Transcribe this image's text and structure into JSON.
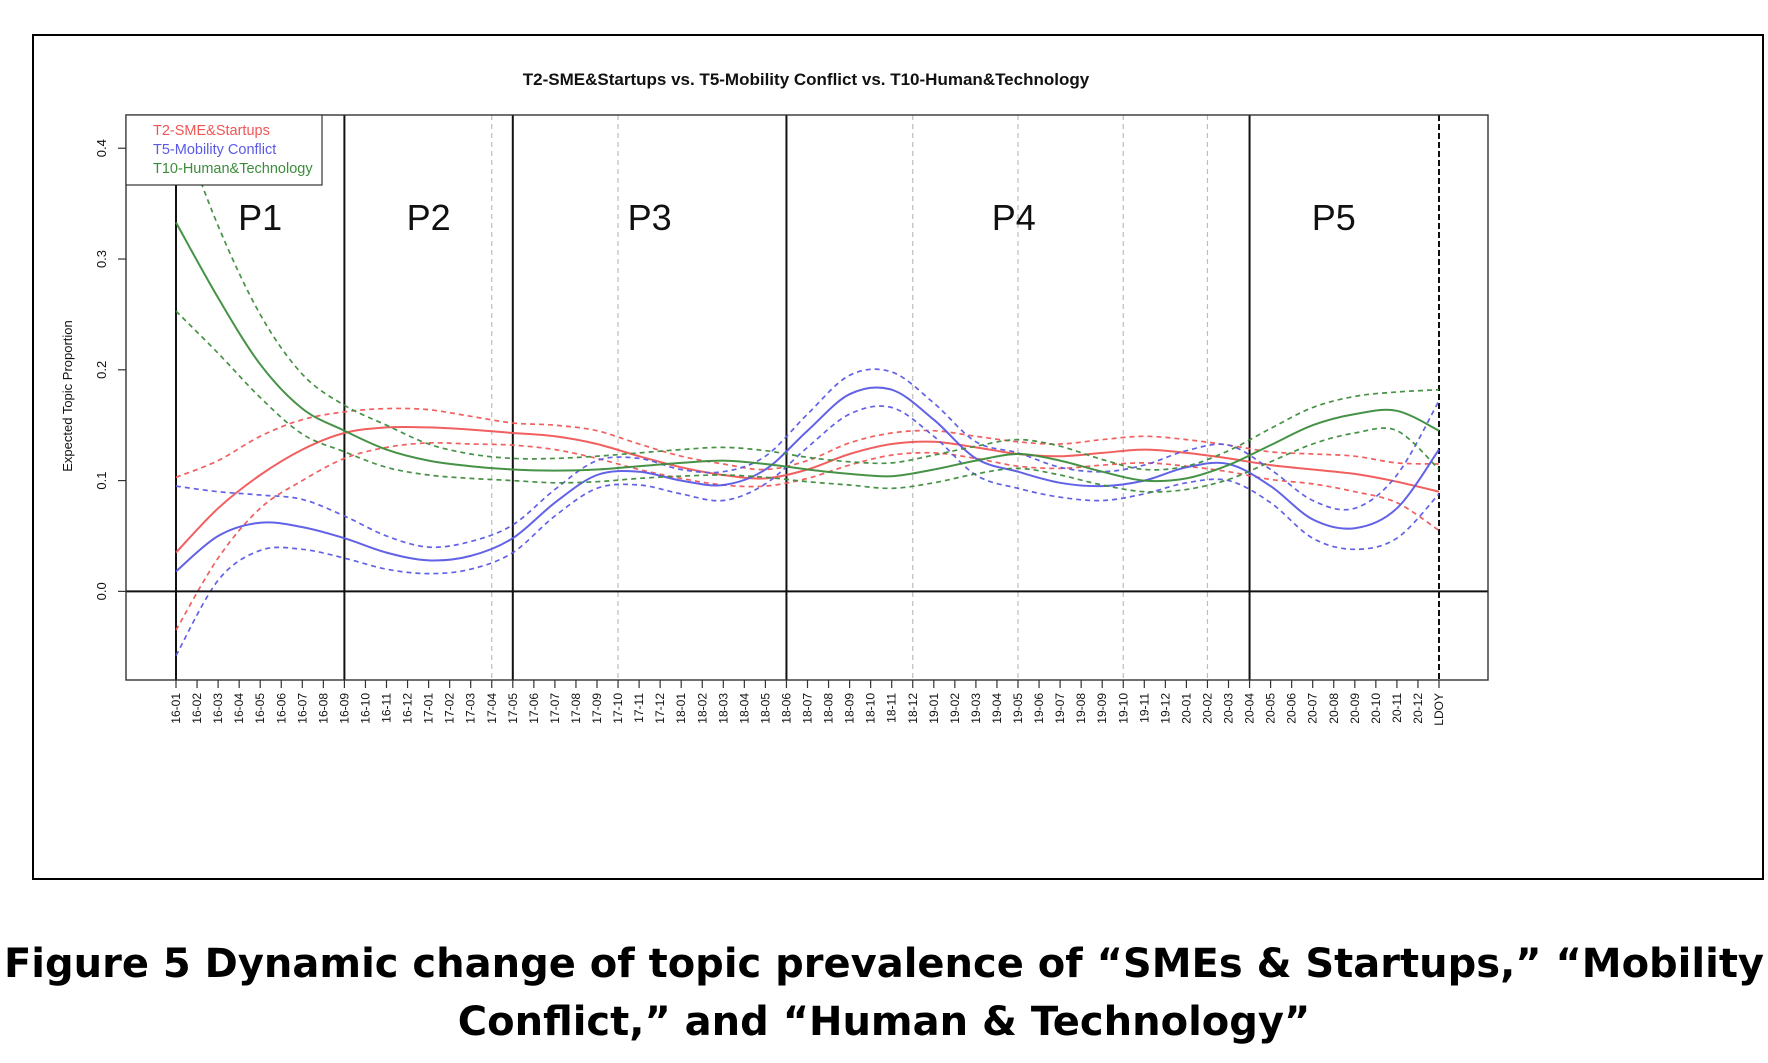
{
  "caption": {
    "line1": "Figure 5 Dynamic change of topic prevalence of “SMEs & Startups,” “Mobility",
    "line2": "Conflict,” and “Human & Technology”"
  },
  "chart_data": {
    "type": "line",
    "title": "T2-SME&Startups vs. T5-Mobility Conflict vs. T10-Human&Technology",
    "xlabel": "",
    "ylabel": "Expected Topic Proportion",
    "ylim": [
      -0.08,
      0.43
    ],
    "yticks": [
      0.0,
      0.1,
      0.2,
      0.3,
      0.4
    ],
    "ytick_labels": [
      "0.0",
      "0.1",
      "0.2",
      "0.3",
      "0.4"
    ],
    "x_labels": [
      "16-01",
      "16-02",
      "16-03",
      "16-04",
      "16-05",
      "16-06",
      "16-07",
      "16-08",
      "16-09",
      "16-10",
      "16-11",
      "16-12",
      "17-01",
      "17-02",
      "17-03",
      "17-04",
      "17-05",
      "17-06",
      "17-07",
      "17-08",
      "17-09",
      "17-10",
      "17-11",
      "17-12",
      "18-01",
      "18-02",
      "18-03",
      "18-04",
      "18-05",
      "18-06",
      "18-07",
      "18-08",
      "18-09",
      "18-10",
      "18-11",
      "18-12",
      "19-01",
      "19-02",
      "19-03",
      "19-04",
      "19-05",
      "19-06",
      "19-07",
      "19-08",
      "19-09",
      "19-10",
      "19-11",
      "19-12",
      "20-01",
      "20-02",
      "20-03",
      "20-04",
      "20-05",
      "20-06",
      "20-07",
      "20-08",
      "20-09",
      "20-10",
      "20-11",
      "20-12",
      "LDOY"
    ],
    "grid": "dashed vertical lines at events",
    "legend_position": "top-left",
    "period_boundaries": [
      0,
      8,
      16,
      29,
      51,
      60
    ],
    "event_lines": [
      15,
      21,
      35,
      40,
      45,
      49
    ],
    "periods": [
      {
        "label": "P1",
        "center": 4
      },
      {
        "label": "P2",
        "center": 12
      },
      {
        "label": "P3",
        "center": 22.5
      },
      {
        "label": "P4",
        "center": 39.8
      },
      {
        "label": "P5",
        "center": 55
      }
    ],
    "series": [
      {
        "name": "T2-SME&Startups",
        "color": "#f05656",
        "x": [
          0,
          2,
          4,
          6,
          8,
          10,
          12,
          14,
          16,
          18,
          20,
          22,
          24,
          26,
          28,
          30,
          32,
          34,
          36,
          38,
          40,
          42,
          44,
          46,
          48,
          50,
          52,
          54,
          56,
          58,
          60
        ],
        "mean": [
          0.035,
          0.075,
          0.105,
          0.128,
          0.143,
          0.148,
          0.148,
          0.146,
          0.143,
          0.14,
          0.133,
          0.122,
          0.112,
          0.105,
          0.102,
          0.11,
          0.124,
          0.133,
          0.135,
          0.13,
          0.124,
          0.122,
          0.125,
          0.128,
          0.125,
          0.12,
          0.114,
          0.11,
          0.106,
          0.099,
          0.09
        ],
        "upper": [
          0.103,
          0.118,
          0.14,
          0.155,
          0.162,
          0.165,
          0.164,
          0.158,
          0.152,
          0.15,
          0.145,
          0.133,
          0.122,
          0.115,
          0.11,
          0.118,
          0.134,
          0.143,
          0.145,
          0.14,
          0.135,
          0.133,
          0.137,
          0.14,
          0.137,
          0.132,
          0.126,
          0.124,
          0.122,
          0.116,
          0.115
        ],
        "lower": [
          -0.035,
          0.03,
          0.075,
          0.1,
          0.12,
          0.13,
          0.134,
          0.133,
          0.132,
          0.128,
          0.12,
          0.11,
          0.102,
          0.096,
          0.095,
          0.102,
          0.114,
          0.123,
          0.125,
          0.12,
          0.113,
          0.111,
          0.114,
          0.116,
          0.113,
          0.108,
          0.101,
          0.097,
          0.09,
          0.08,
          0.055
        ]
      },
      {
        "name": "T5-Mobility Conflict",
        "color": "#5a5ae6",
        "x": [
          0,
          2,
          4,
          6,
          8,
          10,
          12,
          14,
          16,
          18,
          20,
          22,
          24,
          26,
          28,
          30,
          32,
          34,
          36,
          38,
          40,
          42,
          44,
          46,
          48,
          50,
          52,
          54,
          56,
          58,
          60
        ],
        "mean": [
          0.018,
          0.05,
          0.062,
          0.058,
          0.048,
          0.035,
          0.028,
          0.032,
          0.048,
          0.08,
          0.105,
          0.108,
          0.1,
          0.096,
          0.11,
          0.145,
          0.178,
          0.182,
          0.155,
          0.12,
          0.108,
          0.098,
          0.095,
          0.1,
          0.112,
          0.115,
          0.095,
          0.065,
          0.057,
          0.075,
          0.128
        ],
        "upper": [
          0.095,
          0.09,
          0.087,
          0.083,
          0.068,
          0.05,
          0.04,
          0.045,
          0.06,
          0.092,
          0.118,
          0.12,
          0.11,
          0.108,
          0.122,
          0.16,
          0.195,
          0.198,
          0.17,
          0.135,
          0.125,
          0.112,
          0.108,
          0.114,
          0.127,
          0.132,
          0.11,
          0.082,
          0.075,
          0.105,
          0.172
        ],
        "lower": [
          -0.058,
          0.01,
          0.037,
          0.038,
          0.03,
          0.02,
          0.016,
          0.02,
          0.035,
          0.068,
          0.093,
          0.096,
          0.088,
          0.082,
          0.097,
          0.13,
          0.16,
          0.166,
          0.14,
          0.105,
          0.093,
          0.085,
          0.082,
          0.088,
          0.098,
          0.1,
          0.08,
          0.048,
          0.038,
          0.048,
          0.088
        ]
      },
      {
        "name": "T10-Human&Technology",
        "color": "#3c8c3c",
        "x": [
          0,
          2,
          4,
          6,
          8,
          10,
          12,
          14,
          16,
          18,
          20,
          22,
          24,
          26,
          28,
          30,
          32,
          34,
          36,
          38,
          40,
          42,
          44,
          46,
          48,
          50,
          52,
          54,
          56,
          58,
          60
        ],
        "mean": [
          0.333,
          0.265,
          0.205,
          0.165,
          0.145,
          0.128,
          0.118,
          0.113,
          0.11,
          0.109,
          0.11,
          0.113,
          0.116,
          0.118,
          0.115,
          0.11,
          0.106,
          0.104,
          0.11,
          0.118,
          0.124,
          0.118,
          0.108,
          0.1,
          0.102,
          0.114,
          0.132,
          0.15,
          0.16,
          0.163,
          0.145
        ],
        "upper": [
          0.43,
          0.33,
          0.25,
          0.196,
          0.168,
          0.15,
          0.133,
          0.124,
          0.12,
          0.12,
          0.122,
          0.125,
          0.128,
          0.13,
          0.127,
          0.121,
          0.117,
          0.116,
          0.123,
          0.131,
          0.137,
          0.131,
          0.119,
          0.11,
          0.113,
          0.127,
          0.147,
          0.166,
          0.176,
          0.18,
          0.182
        ],
        "lower": [
          0.253,
          0.215,
          0.175,
          0.142,
          0.126,
          0.112,
          0.105,
          0.102,
          0.1,
          0.098,
          0.099,
          0.102,
          0.104,
          0.105,
          0.103,
          0.099,
          0.096,
          0.093,
          0.098,
          0.106,
          0.111,
          0.105,
          0.096,
          0.09,
          0.092,
          0.101,
          0.117,
          0.133,
          0.143,
          0.145,
          0.11
        ]
      }
    ]
  }
}
